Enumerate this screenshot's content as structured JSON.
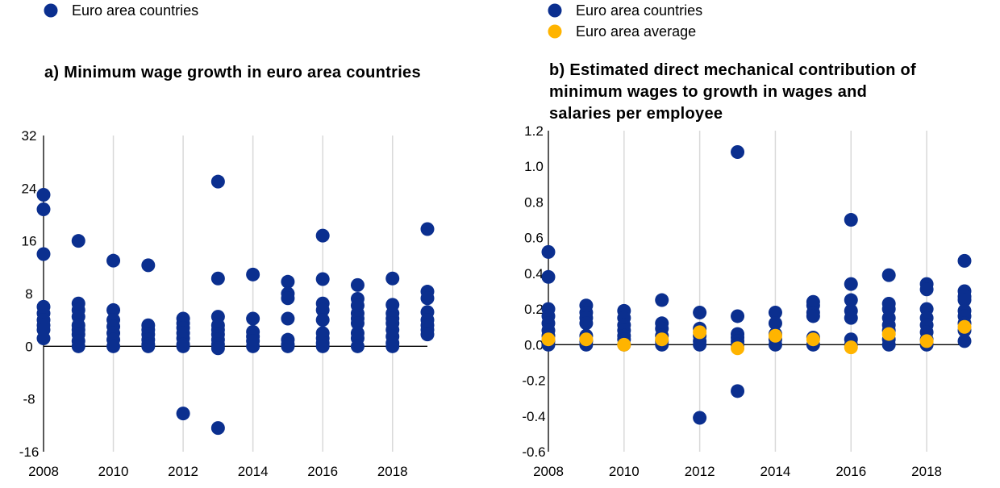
{
  "colors": {
    "countries": "#0b2f8f",
    "average": "#ffb400",
    "grid": "#d9d9d9",
    "axis": "#000000"
  },
  "chart_data": [
    {
      "type": "scatter",
      "title_lines": [
        "a) Minimum wage growth in euro area countries"
      ],
      "xlabel": "",
      "ylabel": "",
      "xlim": [
        2008,
        2019
      ],
      "ylim": [
        -16,
        32
      ],
      "xticks": [
        "2008",
        "2010",
        "2012",
        "2014",
        "2016",
        "2018"
      ],
      "yticks": [
        "32",
        "24",
        "16",
        "8",
        "0",
        "-8",
        "-16"
      ],
      "grid": "vertical",
      "legend": [
        {
          "label": "Euro area countries",
          "series": "countries"
        }
      ],
      "series": [
        {
          "name": "Euro area countries",
          "key": "countries",
          "points": [
            [
              2008,
              23.0
            ],
            [
              2008,
              20.8
            ],
            [
              2008,
              14.0
            ],
            [
              2008,
              6.0
            ],
            [
              2008,
              5.0
            ],
            [
              2008,
              4.0
            ],
            [
              2008,
              3.2
            ],
            [
              2008,
              2.5
            ],
            [
              2008,
              1.2
            ],
            [
              2009,
              16.0
            ],
            [
              2009,
              6.5
            ],
            [
              2009,
              5.5
            ],
            [
              2009,
              4.5
            ],
            [
              2009,
              3.2
            ],
            [
              2009,
              2.5
            ],
            [
              2009,
              1.8
            ],
            [
              2009,
              0.8
            ],
            [
              2009,
              0.0
            ],
            [
              2010,
              13.0
            ],
            [
              2010,
              5.5
            ],
            [
              2010,
              4.0
            ],
            [
              2010,
              3.0
            ],
            [
              2010,
              2.0
            ],
            [
              2010,
              1.0
            ],
            [
              2010,
              0.0
            ],
            [
              2011,
              12.3
            ],
            [
              2011,
              3.2
            ],
            [
              2011,
              2.5
            ],
            [
              2011,
              1.8
            ],
            [
              2011,
              1.0
            ],
            [
              2011,
              0.3
            ],
            [
              2011,
              0.0
            ],
            [
              2012,
              4.2
            ],
            [
              2012,
              3.5
            ],
            [
              2012,
              2.8
            ],
            [
              2012,
              2.0
            ],
            [
              2012,
              1.2
            ],
            [
              2012,
              0.3
            ],
            [
              2012,
              0.0
            ],
            [
              2012,
              -10.2
            ],
            [
              2013,
              25.0
            ],
            [
              2013,
              10.3
            ],
            [
              2013,
              4.5
            ],
            [
              2013,
              3.2
            ],
            [
              2013,
              2.5
            ],
            [
              2013,
              1.8
            ],
            [
              2013,
              1.0
            ],
            [
              2013,
              0.3
            ],
            [
              2013,
              -0.3
            ],
            [
              2013,
              -12.4
            ],
            [
              2014,
              10.9
            ],
            [
              2014,
              4.2
            ],
            [
              2014,
              2.2
            ],
            [
              2014,
              1.5
            ],
            [
              2014,
              0.8
            ],
            [
              2014,
              0.0
            ],
            [
              2015,
              9.8
            ],
            [
              2015,
              8.0
            ],
            [
              2015,
              7.3
            ],
            [
              2015,
              4.2
            ],
            [
              2015,
              1.0
            ],
            [
              2015,
              0.3
            ],
            [
              2015,
              0.0
            ],
            [
              2016,
              16.8
            ],
            [
              2016,
              10.2
            ],
            [
              2016,
              6.5
            ],
            [
              2016,
              5.5
            ],
            [
              2016,
              4.0
            ],
            [
              2016,
              2.0
            ],
            [
              2016,
              1.2
            ],
            [
              2016,
              0.5
            ],
            [
              2016,
              0.0
            ],
            [
              2017,
              9.3
            ],
            [
              2017,
              7.2
            ],
            [
              2017,
              6.2
            ],
            [
              2017,
              5.0
            ],
            [
              2017,
              4.2
            ],
            [
              2017,
              3.5
            ],
            [
              2017,
              2.0
            ],
            [
              2017,
              1.2
            ],
            [
              2017,
              0.0
            ],
            [
              2018,
              10.3
            ],
            [
              2018,
              6.3
            ],
            [
              2018,
              5.0
            ],
            [
              2018,
              4.2
            ],
            [
              2018,
              3.5
            ],
            [
              2018,
              2.5
            ],
            [
              2018,
              1.5
            ],
            [
              2018,
              0.5
            ],
            [
              2018,
              0.0
            ],
            [
              2019,
              17.8
            ],
            [
              2019,
              8.3
            ],
            [
              2019,
              7.3
            ],
            [
              2019,
              5.2
            ],
            [
              2019,
              4.0
            ],
            [
              2019,
              3.2
            ],
            [
              2019,
              2.5
            ],
            [
              2019,
              1.8
            ]
          ]
        }
      ]
    },
    {
      "type": "scatter",
      "title_lines": [
        "b) Estimated direct mechanical contribution of",
        "minimum wages to growth in wages and",
        "salaries per employee"
      ],
      "xlabel": "",
      "ylabel": "",
      "xlim": [
        2008,
        2019
      ],
      "ylim": [
        -0.6,
        1.2
      ],
      "xticks": [
        "2008",
        "2010",
        "2012",
        "2014",
        "2016",
        "2018"
      ],
      "yticks": [
        "1.2",
        "1.0",
        "0.8",
        "0.6",
        "0.4",
        "0.2",
        "0.0",
        "-0.2",
        "-0.4",
        "-0.6"
      ],
      "grid": "vertical",
      "legend": [
        {
          "label": "Euro area countries",
          "series": "countries"
        },
        {
          "label": "Euro area average",
          "series": "average"
        }
      ],
      "series": [
        {
          "name": "Euro area countries",
          "key": "countries",
          "points": [
            [
              2008,
              0.52
            ],
            [
              2008,
              0.38
            ],
            [
              2008,
              0.2
            ],
            [
              2008,
              0.16
            ],
            [
              2008,
              0.12
            ],
            [
              2008,
              0.08
            ],
            [
              2008,
              0.05
            ],
            [
              2008,
              0.02
            ],
            [
              2008,
              0.0
            ],
            [
              2009,
              0.22
            ],
            [
              2009,
              0.18
            ],
            [
              2009,
              0.15
            ],
            [
              2009,
              0.12
            ],
            [
              2009,
              0.05
            ],
            [
              2009,
              0.02
            ],
            [
              2009,
              0.0
            ],
            [
              2010,
              0.19
            ],
            [
              2010,
              0.15
            ],
            [
              2010,
              0.11
            ],
            [
              2010,
              0.08
            ],
            [
              2010,
              0.05
            ],
            [
              2010,
              0.03
            ],
            [
              2010,
              0.0
            ],
            [
              2011,
              0.25
            ],
            [
              2011,
              0.12
            ],
            [
              2011,
              0.09
            ],
            [
              2011,
              0.05
            ],
            [
              2011,
              0.02
            ],
            [
              2011,
              0.0
            ],
            [
              2012,
              0.18
            ],
            [
              2012,
              0.09
            ],
            [
              2012,
              0.05
            ],
            [
              2012,
              0.02
            ],
            [
              2012,
              0.0
            ],
            [
              2012,
              -0.41
            ],
            [
              2013,
              1.08
            ],
            [
              2013,
              0.16
            ],
            [
              2013,
              0.06
            ],
            [
              2013,
              0.04
            ],
            [
              2013,
              0.02
            ],
            [
              2013,
              0.0
            ],
            [
              2013,
              -0.26
            ],
            [
              2014,
              0.18
            ],
            [
              2014,
              0.12
            ],
            [
              2014,
              0.06
            ],
            [
              2014,
              0.03
            ],
            [
              2014,
              0.0
            ],
            [
              2015,
              0.24
            ],
            [
              2015,
              0.22
            ],
            [
              2015,
              0.18
            ],
            [
              2015,
              0.16
            ],
            [
              2015,
              0.04
            ],
            [
              2015,
              0.0
            ],
            [
              2016,
              0.7
            ],
            [
              2016,
              0.34
            ],
            [
              2016,
              0.25
            ],
            [
              2016,
              0.19
            ],
            [
              2016,
              0.15
            ],
            [
              2016,
              0.03
            ],
            [
              2016,
              0.0
            ],
            [
              2017,
              0.39
            ],
            [
              2017,
              0.23
            ],
            [
              2017,
              0.2
            ],
            [
              2017,
              0.15
            ],
            [
              2017,
              0.11
            ],
            [
              2017,
              0.08
            ],
            [
              2017,
              0.03
            ],
            [
              2017,
              0.0
            ],
            [
              2018,
              0.34
            ],
            [
              2018,
              0.31
            ],
            [
              2018,
              0.2
            ],
            [
              2018,
              0.15
            ],
            [
              2018,
              0.11
            ],
            [
              2018,
              0.07
            ],
            [
              2018,
              0.03
            ],
            [
              2018,
              0.0
            ],
            [
              2019,
              0.47
            ],
            [
              2019,
              0.3
            ],
            [
              2019,
              0.27
            ],
            [
              2019,
              0.25
            ],
            [
              2019,
              0.19
            ],
            [
              2019,
              0.16
            ],
            [
              2019,
              0.12
            ],
            [
              2019,
              0.08
            ],
            [
              2019,
              0.02
            ]
          ]
        },
        {
          "name": "Euro area average",
          "key": "average",
          "points": [
            [
              2008,
              0.03
            ],
            [
              2009,
              0.03
            ],
            [
              2010,
              0.0
            ],
            [
              2011,
              0.03
            ],
            [
              2012,
              0.07
            ],
            [
              2013,
              -0.02
            ],
            [
              2014,
              0.05
            ],
            [
              2015,
              0.03
            ],
            [
              2016,
              -0.015
            ],
            [
              2017,
              0.06
            ],
            [
              2018,
              0.02
            ],
            [
              2019,
              0.1
            ]
          ]
        }
      ]
    }
  ]
}
